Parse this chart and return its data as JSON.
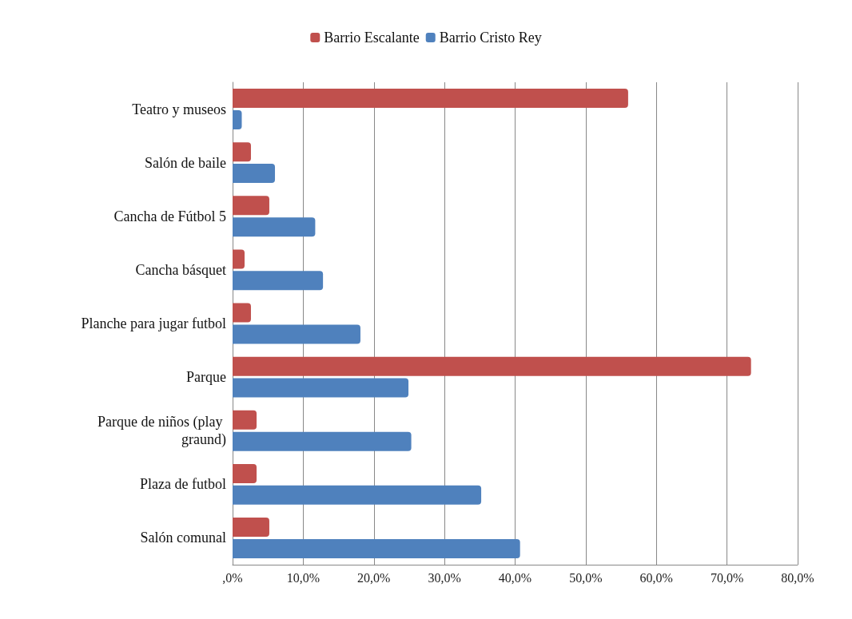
{
  "chart_data": {
    "type": "bar",
    "orientation": "horizontal",
    "categories": [
      "Teatro y museos",
      "Salón de baile",
      "Cancha de Fútbol 5",
      "Cancha básquet",
      "Planche para jugar futbol",
      "Parque",
      "Parque de niños (play graund)",
      "Plaza de futbol",
      "Salón comunal"
    ],
    "series": [
      {
        "name": "Barrio Escalante",
        "color": "#c0504d",
        "values": [
          56,
          2.6,
          5.2,
          1.7,
          2.6,
          73.4,
          3.4,
          3.4,
          5.2
        ]
      },
      {
        "name": "Barrio Cristo Rey",
        "color": "#4f81bd",
        "values": [
          1.3,
          6,
          11.7,
          12.8,
          18.1,
          24.9,
          25.3,
          35.2,
          40.7
        ]
      }
    ],
    "xlim": [
      0,
      80
    ],
    "xticks": [
      {
        "value": 0,
        "label": ",0%"
      },
      {
        "value": 10,
        "label": "10,0%"
      },
      {
        "value": 20,
        "label": "20,0%"
      },
      {
        "value": 30,
        "label": "30,0%"
      },
      {
        "value": 40,
        "label": "40,0%"
      },
      {
        "value": 50,
        "label": "50,0%"
      },
      {
        "value": 60,
        "label": "60,0%"
      },
      {
        "value": 70,
        "label": "70,0%"
      },
      {
        "value": 80,
        "label": "80,0%"
      }
    ],
    "grid": "x",
    "legend": "top"
  }
}
